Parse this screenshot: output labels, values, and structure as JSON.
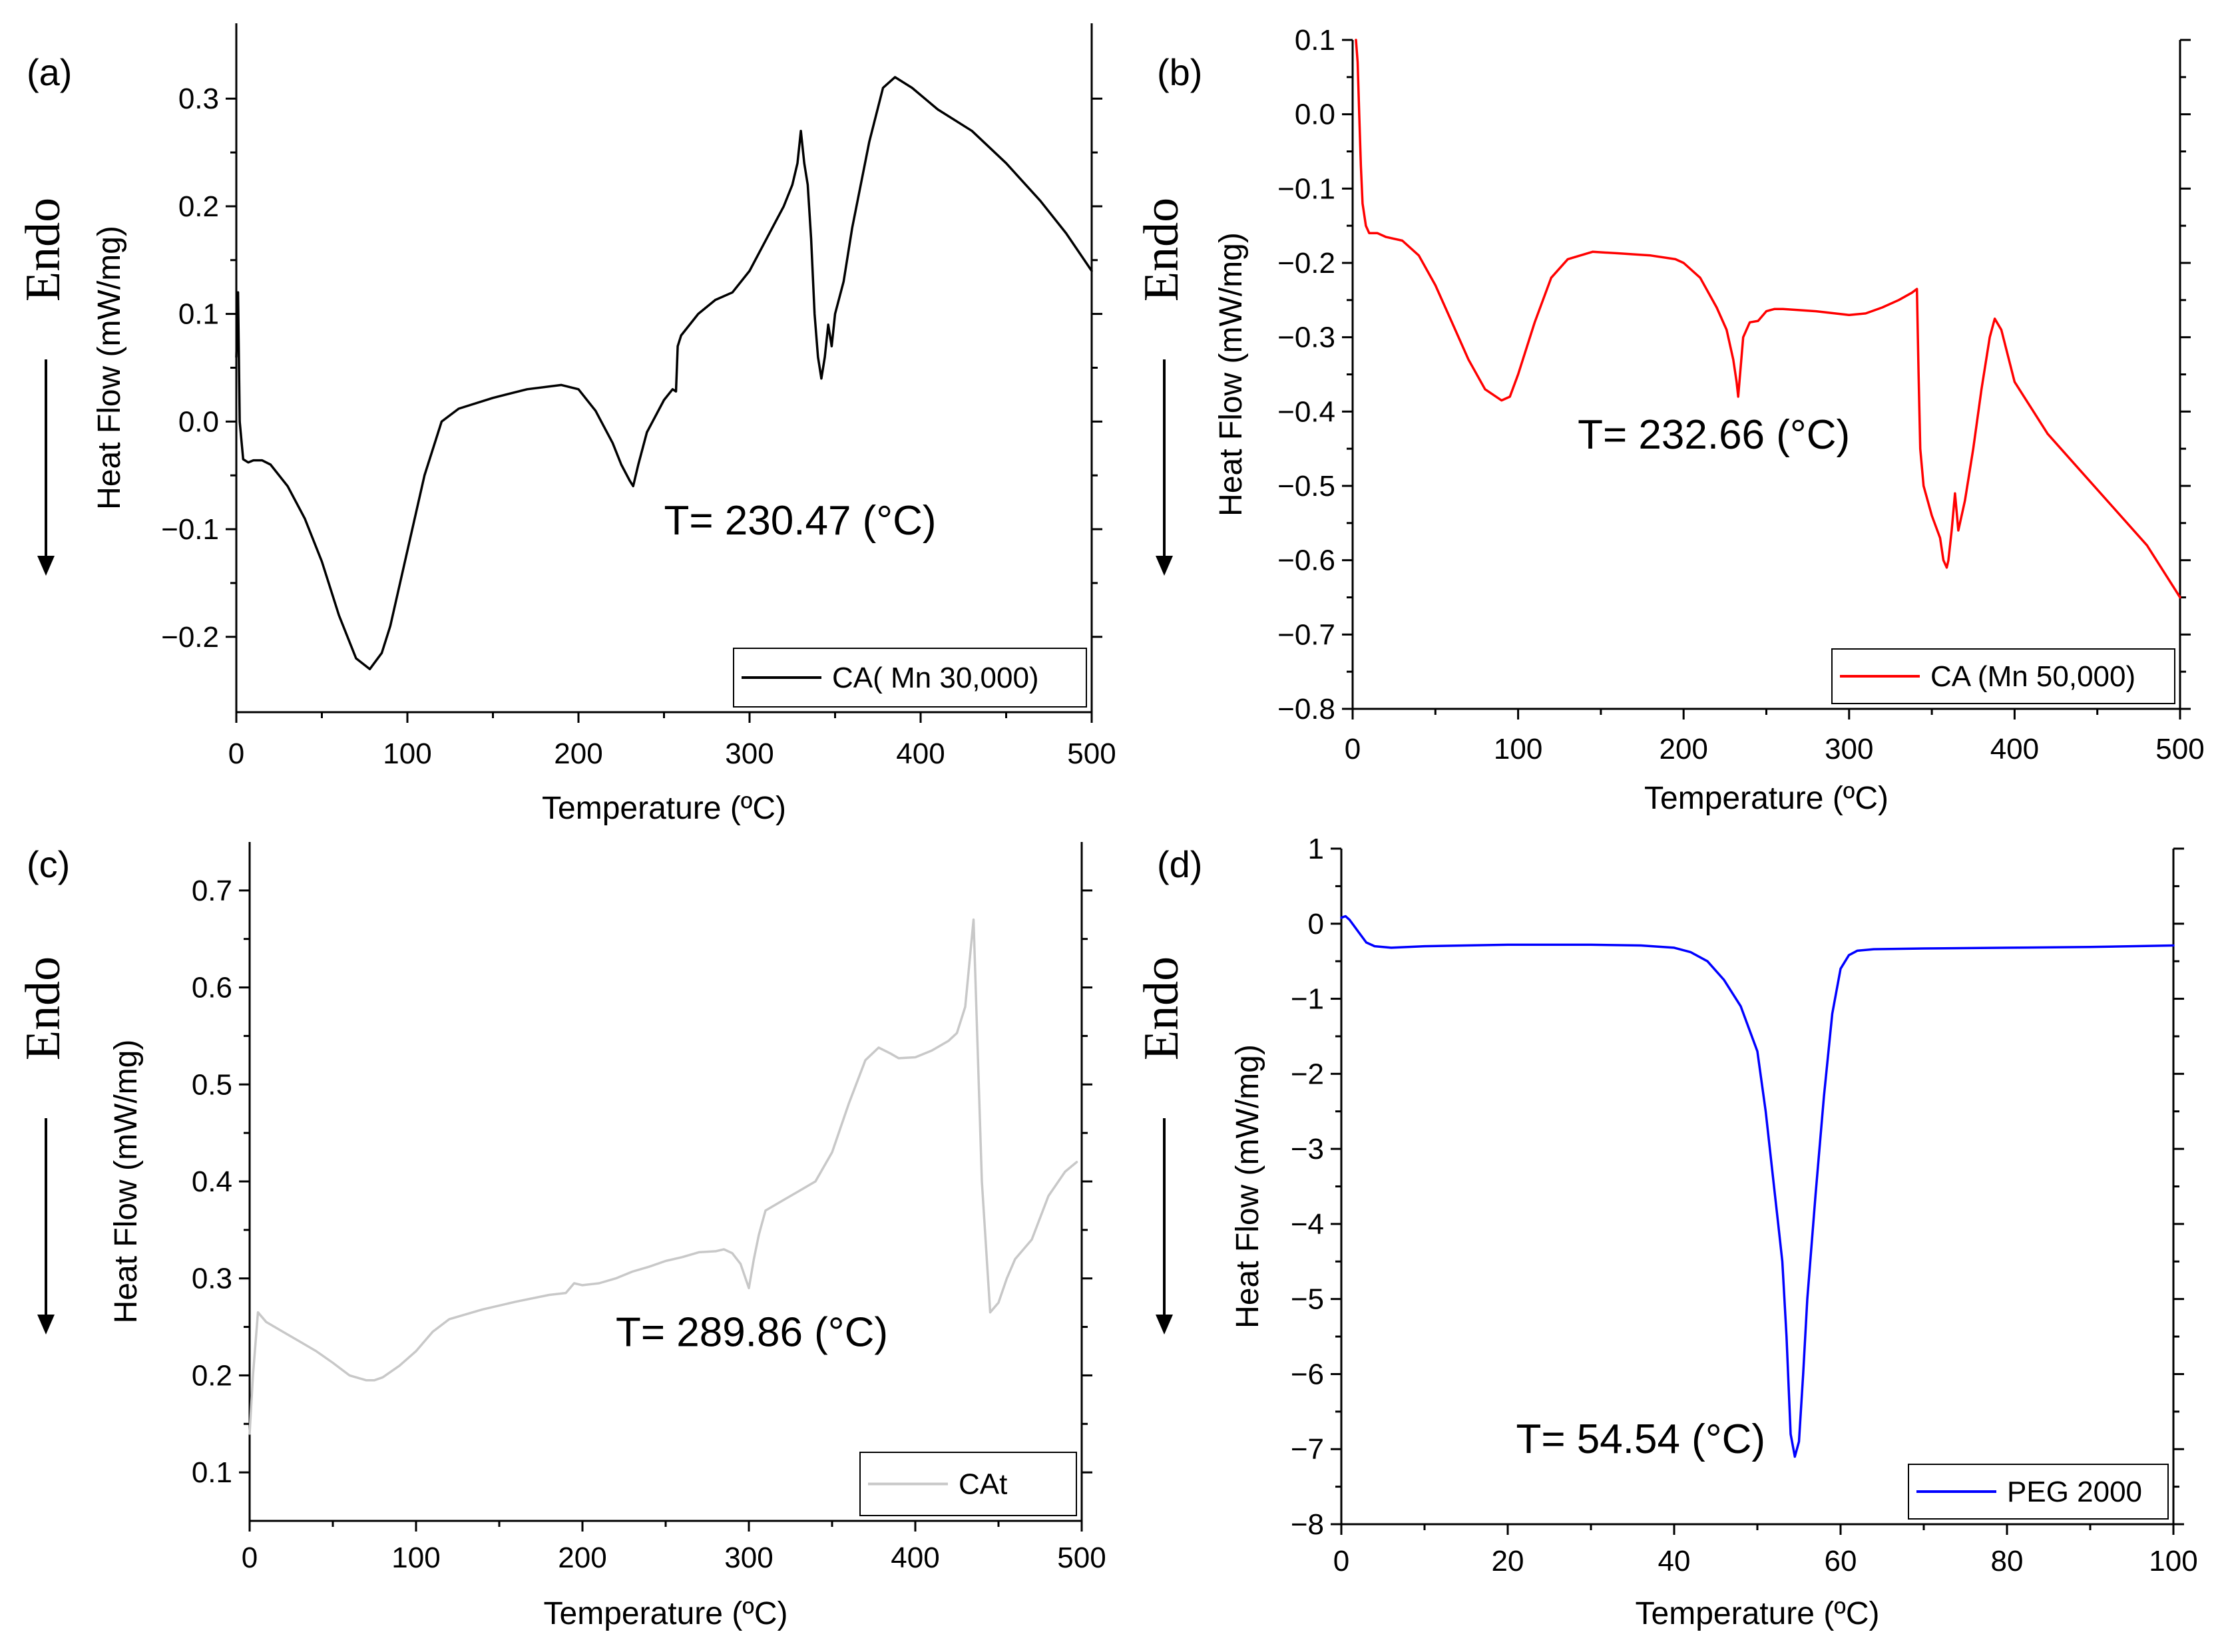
{
  "figure": {
    "endo_label": "Endo"
  },
  "chart_data": [
    {
      "panel": "(a)",
      "type": "line",
      "xlabel": "Temperature (ºC)",
      "ylabel": "Heat Flow (mW/mg)",
      "xlim": [
        0,
        500
      ],
      "ylim": [
        -0.27,
        0.37
      ],
      "xticks": [
        0,
        100,
        200,
        300,
        400,
        500
      ],
      "yticks": [
        -0.2,
        -0.1,
        0.0,
        0.1,
        0.2,
        0.3
      ],
      "ytick_labels": [
        "−0.2",
        "−0.1",
        "0.0",
        "0.1",
        "0.2",
        "0.3"
      ],
      "annotation": "T= 230.47 (°C)",
      "annotation_xy": [
        250,
        -0.105
      ],
      "legend": "CA( Mn 30,000)",
      "color": "#000000",
      "x": [
        0,
        1,
        2,
        4,
        7,
        10,
        15,
        20,
        30,
        40,
        50,
        60,
        70,
        78,
        85,
        90,
        100,
        110,
        120,
        130,
        150,
        170,
        190,
        200,
        210,
        220,
        225,
        230,
        232,
        235,
        240,
        250,
        255,
        257,
        258,
        260,
        270,
        280,
        290,
        300,
        310,
        315,
        320,
        325,
        328,
        330,
        332,
        334,
        336,
        338,
        340,
        342,
        344,
        346,
        348,
        350,
        355,
        360,
        370,
        378,
        385,
        395,
        410,
        430,
        450,
        470,
        485,
        500
      ],
      "y": [
        0.06,
        0.12,
        0.0,
        -0.035,
        -0.038,
        -0.036,
        -0.036,
        -0.04,
        -0.06,
        -0.09,
        -0.13,
        -0.18,
        -0.22,
        -0.23,
        -0.215,
        -0.19,
        -0.12,
        -0.05,
        0.0,
        0.012,
        0.022,
        0.03,
        0.034,
        0.03,
        0.01,
        -0.02,
        -0.04,
        -0.055,
        -0.06,
        -0.04,
        -0.01,
        0.02,
        0.03,
        0.028,
        0.07,
        0.08,
        0.1,
        0.113,
        0.12,
        0.14,
        0.17,
        0.185,
        0.2,
        0.22,
        0.24,
        0.27,
        0.24,
        0.22,
        0.17,
        0.1,
        0.06,
        0.04,
        0.06,
        0.09,
        0.07,
        0.1,
        0.13,
        0.18,
        0.26,
        0.31,
        0.32,
        0.31,
        0.29,
        0.27,
        0.24,
        0.205,
        0.175,
        0.14
      ]
    },
    {
      "panel": "(b)",
      "type": "line",
      "xlabel": "Temperature (ºC)",
      "ylabel": "Heat Flow (mW/mg)",
      "xlim": [
        0,
        500
      ],
      "ylim": [
        -0.8,
        0.1
      ],
      "xticks": [
        0,
        100,
        200,
        300,
        400,
        500
      ],
      "yticks": [
        -0.8,
        -0.7,
        -0.6,
        -0.5,
        -0.4,
        -0.3,
        -0.2,
        -0.1,
        0.0,
        0.1
      ],
      "ytick_labels": [
        "−0.8",
        "−0.7",
        "−0.6",
        "−0.5",
        "−0.4",
        "−0.3",
        "−0.2",
        "−0.1",
        "0.0",
        "0.1"
      ],
      "annotation": "T= 232.66 (°C)",
      "annotation_xy": [
        136,
        -0.45
      ],
      "legend": "CA (Mn 50,000)",
      "color": "#ff0000",
      "x": [
        2,
        3,
        4,
        5,
        6,
        8,
        10,
        15,
        20,
        30,
        40,
        50,
        60,
        70,
        80,
        90,
        95,
        100,
        110,
        120,
        130,
        145,
        160,
        180,
        195,
        200,
        210,
        220,
        226,
        230,
        232,
        233,
        236,
        240,
        245,
        250,
        255,
        260,
        280,
        300,
        310,
        320,
        330,
        338,
        341,
        342,
        343,
        345,
        350,
        355,
        357,
        359,
        360,
        362,
        364,
        366,
        370,
        375,
        380,
        385,
        388,
        392,
        400,
        420,
        440,
        460,
        480,
        500
      ],
      "y": [
        0.1,
        0.07,
        0.0,
        -0.07,
        -0.12,
        -0.15,
        -0.16,
        -0.16,
        -0.165,
        -0.17,
        -0.19,
        -0.23,
        -0.28,
        -0.33,
        -0.37,
        -0.385,
        -0.38,
        -0.35,
        -0.28,
        -0.22,
        -0.195,
        -0.185,
        -0.187,
        -0.19,
        -0.195,
        -0.2,
        -0.22,
        -0.26,
        -0.29,
        -0.33,
        -0.36,
        -0.38,
        -0.3,
        -0.28,
        -0.278,
        -0.265,
        -0.262,
        -0.262,
        -0.265,
        -0.27,
        -0.268,
        -0.26,
        -0.25,
        -0.24,
        -0.235,
        -0.35,
        -0.45,
        -0.5,
        -0.54,
        -0.57,
        -0.6,
        -0.61,
        -0.6,
        -0.56,
        -0.51,
        -0.56,
        -0.52,
        -0.45,
        -0.37,
        -0.3,
        -0.275,
        -0.29,
        -0.36,
        -0.43,
        -0.48,
        -0.53,
        -0.58,
        -0.65
      ]
    },
    {
      "panel": "(c)",
      "type": "line",
      "xlabel": "Temperature (ºC)",
      "ylabel": "Heat Flow (mW/mg)",
      "xlim": [
        0,
        500
      ],
      "ylim": [
        0.05,
        0.75
      ],
      "xticks": [
        0,
        100,
        200,
        300,
        400,
        500
      ],
      "yticks": [
        0.1,
        0.2,
        0.3,
        0.4,
        0.5,
        0.6,
        0.7
      ],
      "ytick_labels": [
        "0.1",
        "0.2",
        "0.3",
        "0.4",
        "0.5",
        "0.6",
        "0.7"
      ],
      "annotation": "T= 289.86 (°C)",
      "annotation_xy": [
        220,
        0.23
      ],
      "legend": "CAt",
      "color": "#c8c8c8",
      "x": [
        0,
        2,
        5,
        10,
        20,
        30,
        40,
        50,
        60,
        70,
        75,
        80,
        90,
        100,
        110,
        120,
        140,
        160,
        180,
        190,
        195,
        200,
        210,
        220,
        230,
        240,
        250,
        260,
        270,
        280,
        285,
        290,
        295,
        300,
        303,
        306,
        310,
        320,
        330,
        340,
        350,
        360,
        370,
        378,
        385,
        390,
        400,
        410,
        420,
        425,
        430,
        435,
        440,
        445,
        450,
        455,
        460,
        470,
        480,
        490,
        497
      ],
      "y": [
        0.14,
        0.2,
        0.265,
        0.255,
        0.245,
        0.235,
        0.225,
        0.213,
        0.2,
        0.195,
        0.195,
        0.198,
        0.21,
        0.225,
        0.245,
        0.258,
        0.268,
        0.276,
        0.283,
        0.285,
        0.295,
        0.293,
        0.295,
        0.3,
        0.307,
        0.312,
        0.318,
        0.322,
        0.327,
        0.328,
        0.33,
        0.326,
        0.315,
        0.29,
        0.32,
        0.345,
        0.37,
        0.38,
        0.39,
        0.4,
        0.43,
        0.48,
        0.525,
        0.538,
        0.532,
        0.527,
        0.528,
        0.535,
        0.545,
        0.553,
        0.58,
        0.67,
        0.4,
        0.265,
        0.275,
        0.3,
        0.32,
        0.34,
        0.385,
        0.41,
        0.42
      ]
    },
    {
      "panel": "(d)",
      "type": "line",
      "xlabel": "Temperature (ºC)",
      "ylabel": "Heat Flow (mW/mg)",
      "xlim": [
        0,
        100
      ],
      "ylim": [
        -8,
        1
      ],
      "xticks": [
        0,
        20,
        40,
        60,
        80,
        100
      ],
      "yticks": [
        -8,
        -7,
        -6,
        -5,
        -4,
        -3,
        -2,
        -1,
        0,
        1
      ],
      "ytick_labels": [
        "−8",
        "−7",
        "−6",
        "−5",
        "−4",
        "−3",
        "−2",
        "−1",
        "0",
        "1"
      ],
      "annotation": "T= 54.54 (°C)",
      "annotation_xy": [
        21,
        -7.05
      ],
      "legend": "PEG 2000",
      "color": "#0000ff",
      "x": [
        0,
        0.5,
        1,
        2,
        3,
        4,
        6,
        10,
        20,
        30,
        36,
        40,
        42,
        44,
        46,
        48,
        50,
        51,
        52,
        52.5,
        53,
        53.5,
        54,
        54.5,
        55,
        55.5,
        56,
        57,
        58,
        59,
        60,
        61,
        62,
        64,
        70,
        80,
        90,
        100
      ],
      "y": [
        0.08,
        0.1,
        0.05,
        -0.1,
        -0.25,
        -0.3,
        -0.32,
        -0.3,
        -0.28,
        -0.28,
        -0.29,
        -0.32,
        -0.38,
        -0.5,
        -0.75,
        -1.1,
        -1.7,
        -2.5,
        -3.5,
        -4.0,
        -4.5,
        -5.5,
        -6.8,
        -7.1,
        -6.9,
        -6.0,
        -5.0,
        -3.6,
        -2.3,
        -1.2,
        -0.6,
        -0.42,
        -0.36,
        -0.34,
        -0.33,
        -0.32,
        -0.31,
        -0.29
      ]
    }
  ]
}
